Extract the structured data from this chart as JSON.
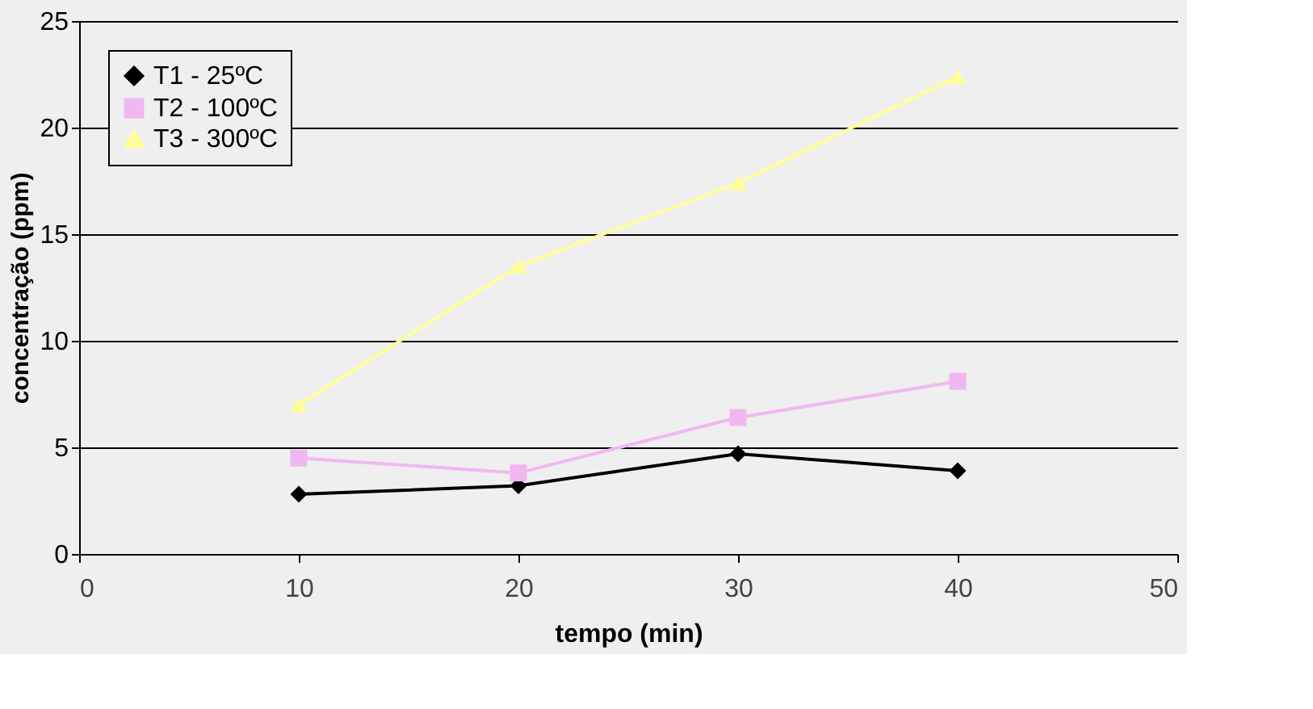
{
  "chart_data": {
    "type": "line",
    "xlabel": "tempo (min)",
    "ylabel": "concentração (ppm)",
    "x": [
      10,
      20,
      30,
      40
    ],
    "series": [
      {
        "name": "T1 - 25ºC",
        "color": "#000000",
        "marker": "diamond",
        "values": [
          2.8,
          3.2,
          4.7,
          3.9
        ]
      },
      {
        "name": "T2 - 100ºC",
        "color": "#f0b8f0",
        "marker": "square",
        "values": [
          4.5,
          3.8,
          6.4,
          8.1
        ]
      },
      {
        "name": "T3 - 300ºC",
        "color": "#ffff99",
        "marker": "triangle",
        "values": [
          7.0,
          13.5,
          17.4,
          22.4
        ]
      }
    ],
    "xlim": [
      0,
      50
    ],
    "xticks": [
      0,
      10,
      20,
      30,
      40,
      50
    ],
    "ylim": [
      0,
      25
    ],
    "yticks": [
      0,
      5,
      10,
      15,
      20,
      25
    ],
    "grid": "y",
    "legend": "top left",
    "line_style": "solid"
  }
}
